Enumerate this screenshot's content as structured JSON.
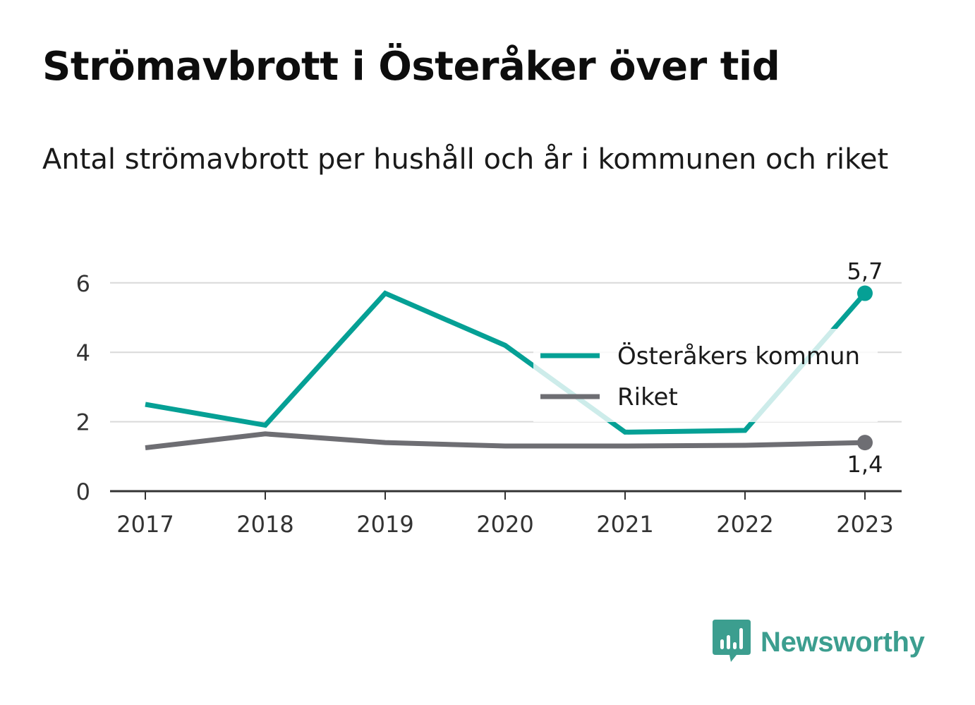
{
  "title": "Strömavbrott i Österåker över tid",
  "subtitle": "Antal strömavbrott per hushåll och år i kommunen och riket",
  "brand": {
    "name": "Newsworthy",
    "color": "#3c9e8f",
    "icon": "newsworthy-bar-chart-icon"
  },
  "colors": {
    "grid": "#d9d9d9",
    "axis": "#333333",
    "tick_text": "#333333"
  },
  "chart_data": {
    "type": "line",
    "title": "Strömavbrott i Österåker över tid",
    "subtitle": "Antal strömavbrott per hushåll och år i kommunen och riket",
    "x": [
      "2017",
      "2018",
      "2019",
      "2020",
      "2021",
      "2022",
      "2023"
    ],
    "ylim": [
      0,
      6.5
    ],
    "yticks": [
      "0",
      "2",
      "4",
      "6"
    ],
    "grid": true,
    "legend_position": "right",
    "series": [
      {
        "name": "Österåkers kommun",
        "color": "#05a095",
        "values": [
          2.5,
          1.9,
          5.7,
          4.2,
          1.7,
          1.75,
          5.7
        ],
        "end_label": "5,7"
      },
      {
        "name": "Riket",
        "color": "#6e6e73",
        "values": [
          1.25,
          1.65,
          1.4,
          1.3,
          1.3,
          1.32,
          1.4
        ],
        "end_label": "1,4"
      }
    ]
  }
}
